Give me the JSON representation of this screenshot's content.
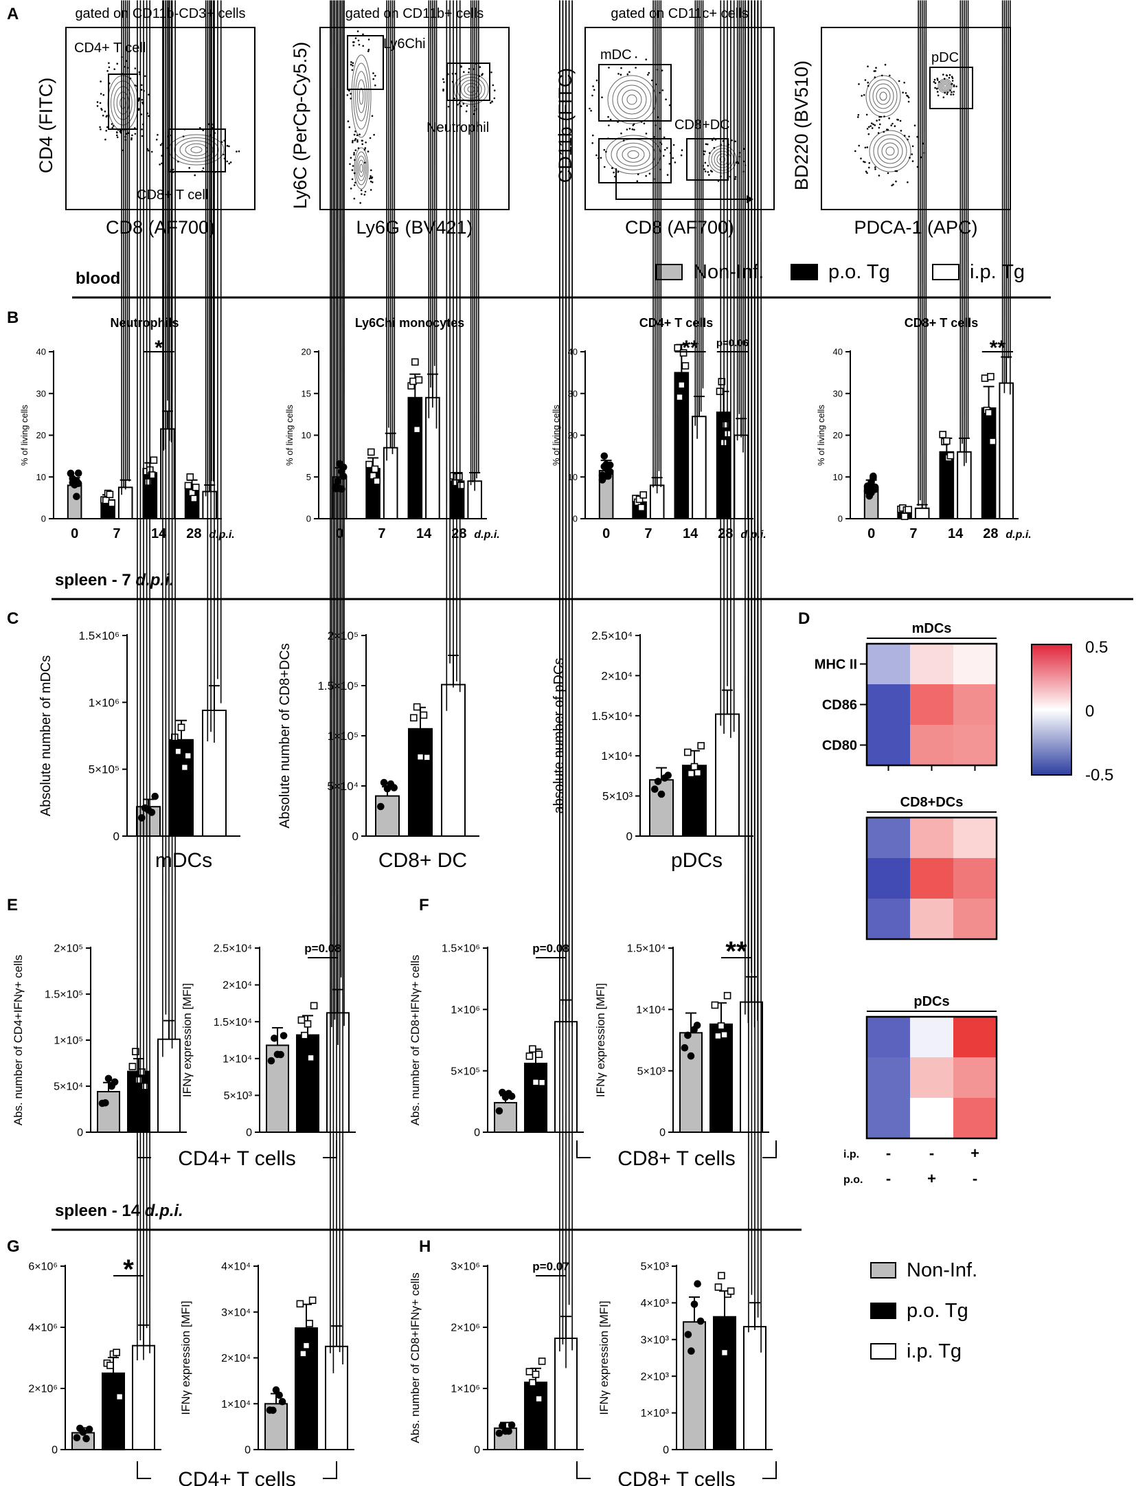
{
  "panel_letters": [
    "A",
    "B",
    "C",
    "D",
    "E",
    "F",
    "G",
    "H"
  ],
  "section_labels": {
    "blood": "blood",
    "spleen7_prefix": "spleen - 7 ",
    "spleen14_prefix": "spleen - 14 ",
    "dpi": "d.p.i."
  },
  "legend": {
    "non_inf": "Non-Inf.",
    "po": "p.o. Tg",
    "ip": "i.p. Tg",
    "colors": {
      "non_inf": "#bdbdbd",
      "po": "#000000",
      "ip": "#ffffff"
    }
  },
  "flow_panels": [
    {
      "title": "gated on CD11b-CD3+ cells",
      "xlabel": "CD8 (AF700)",
      "ylabel": "CD4 (FITC)",
      "gates": [
        "CD4+ T cell",
        "CD8+ T cell"
      ]
    },
    {
      "title": "gated on CD11b+ cells",
      "xlabel": "Ly6G (BV421)",
      "ylabel": "Ly6C (PerCp-Cy5.5)",
      "gates": [
        "Ly6Chi",
        "Neutrophil"
      ]
    },
    {
      "title": "gated on CD11c+ cells",
      "xlabel": "CD8 (AF700)",
      "ylabel": "CD11b (FITC)",
      "gates": [
        "mDC",
        "CD8+DC"
      ]
    },
    {
      "title": "",
      "xlabel": "PDCA-1 (APC)",
      "ylabel": "BD220 (BV510)",
      "gates": [
        "pDC"
      ]
    }
  ],
  "chart_data": [
    {
      "id": "B1",
      "type": "bar",
      "title": "Neutrophils",
      "ylabel": "% of living cells",
      "ylim": [
        0,
        40
      ],
      "yticks": [
        "0",
        "10",
        "20",
        "30",
        "40"
      ],
      "categories": [
        "0",
        "7",
        "14",
        "28"
      ],
      "xunit": "d.p.i.",
      "series": [
        {
          "name": "Non-Inf.",
          "values": [
            8,
            null,
            null,
            null
          ]
        },
        {
          "name": "p.o. Tg",
          "values": [
            null,
            4.5,
            11,
            7.5
          ]
        },
        {
          "name": "i.p. Tg",
          "values": [
            null,
            7.5,
            21.5,
            6.5
          ]
        }
      ],
      "annotations": [
        {
          "text": "*",
          "category": "14"
        }
      ]
    },
    {
      "id": "B2",
      "type": "bar",
      "title": "Ly6Chi monocytes",
      "ylabel": "% of living cells",
      "ylim": [
        0,
        20
      ],
      "yticks": [
        "0",
        "5",
        "10",
        "15",
        "20"
      ],
      "categories": [
        "0",
        "7",
        "14",
        "28"
      ],
      "xunit": "d.p.i.",
      "series": [
        {
          "name": "Non-Inf.",
          "values": [
            5,
            null,
            null,
            null
          ]
        },
        {
          "name": "p.o. Tg",
          "values": [
            null,
            6,
            14.5,
            4.5
          ]
        },
        {
          "name": "i.p. Tg",
          "values": [
            null,
            8.5,
            14.5,
            4.5
          ]
        }
      ],
      "annotations": []
    },
    {
      "id": "B3",
      "type": "bar",
      "title": "CD4+ T cells",
      "ylabel": "% of living cells",
      "ylim": [
        0,
        40
      ],
      "yticks": [
        "0",
        "10",
        "20",
        "30",
        "40"
      ],
      "categories": [
        "0",
        "7",
        "14",
        "28"
      ],
      "xunit": "d.p.i.",
      "series": [
        {
          "name": "Non-Inf.",
          "values": [
            11.5,
            null,
            null,
            null
          ]
        },
        {
          "name": "p.o. Tg",
          "values": [
            null,
            4,
            35,
            25.5
          ]
        },
        {
          "name": "i.p. Tg",
          "values": [
            null,
            8,
            24.5,
            20
          ]
        }
      ],
      "annotations": [
        {
          "text": "**",
          "category": "14"
        },
        {
          "text": "p=0.06",
          "category": "28"
        }
      ]
    },
    {
      "id": "B4",
      "type": "bar",
      "title": "CD8+ T cells",
      "ylabel": "% of living cells",
      "ylim": [
        0,
        40
      ],
      "yticks": [
        "0",
        "10",
        "20",
        "30",
        "40"
      ],
      "categories": [
        "0",
        "7",
        "14",
        "28"
      ],
      "xunit": "d.p.i.",
      "series": [
        {
          "name": "Non-Inf.",
          "values": [
            7.5,
            null,
            null,
            null
          ]
        },
        {
          "name": "p.o. Tg",
          "values": [
            null,
            1.5,
            16,
            26.5
          ]
        },
        {
          "name": "i.p. Tg",
          "values": [
            null,
            2.5,
            16,
            32.5
          ]
        }
      ],
      "annotations": [
        {
          "text": "**",
          "category": "28"
        }
      ]
    },
    {
      "id": "C1",
      "type": "bar",
      "ylabel": "Absolute number of mDCs",
      "ylim": [
        0,
        1500000
      ],
      "yticks": [
        "0",
        "5×10⁵",
        "1×10⁶",
        "1.5×10⁶"
      ],
      "xlabel": "mDCs",
      "values": [
        220000,
        720000,
        940000
      ],
      "annotations": []
    },
    {
      "id": "C2",
      "type": "bar",
      "ylabel": "Absolute number of CD8+DCs",
      "ylim": [
        0,
        200000
      ],
      "yticks": [
        "0",
        "5×10⁴",
        "1×10⁵",
        "1.5×10⁵",
        "2×10⁵"
      ],
      "xlabel": "CD8+ DC",
      "values": [
        40000,
        107000,
        151000
      ],
      "annotations": []
    },
    {
      "id": "C3",
      "type": "bar",
      "ylabel": "absolute number of pDCs",
      "ylim": [
        0,
        25000
      ],
      "yticks": [
        "0",
        "5×10³",
        "1×10⁴",
        "1.5×10⁴",
        "2×10⁴",
        "2.5×10⁴"
      ],
      "xlabel": "pDCs",
      "values": [
        7000,
        8800,
        15200
      ],
      "annotations": []
    },
    {
      "id": "E1",
      "type": "bar",
      "ylabel": "Abs. number of CD4+IFNγ+ cells",
      "ylim": [
        0,
        200000
      ],
      "yticks": [
        "0",
        "5×10⁴",
        "1×10⁵",
        "1.5×10⁵",
        "2×10⁵"
      ],
      "values": [
        44000,
        66000,
        101000
      ],
      "annotations": []
    },
    {
      "id": "E2",
      "type": "bar",
      "ylabel": "IFNγ expression [MFI]",
      "ylim": [
        0,
        25000
      ],
      "yticks": [
        "0",
        "5×10³",
        "1×10⁴",
        "1.5×10⁴",
        "2×10⁴",
        "2.5×10⁴"
      ],
      "values": [
        11800,
        13200,
        16200
      ],
      "annotations": [
        {
          "text": "p=0.08",
          "between": [
            1,
            2
          ]
        }
      ],
      "group_label": "CD4+ T cells"
    },
    {
      "id": "F1",
      "type": "bar",
      "ylabel": "Abs. number of CD8+IFNγ+ cells",
      "ylim": [
        0,
        1500000
      ],
      "yticks": [
        "0",
        "5×10⁵",
        "1×10⁶",
        "1.5×10⁶"
      ],
      "values": [
        240000,
        560000,
        900000
      ],
      "annotations": [
        {
          "text": "p=0.08",
          "between": [
            1,
            2
          ]
        }
      ]
    },
    {
      "id": "F2",
      "type": "bar",
      "ylabel": "IFNγ expression [MFI]",
      "ylim": [
        0,
        15000
      ],
      "yticks": [
        "0",
        "5×10³",
        "1×10⁴",
        "1.5×10⁴"
      ],
      "values": [
        8100,
        8800,
        10600
      ],
      "annotations": [
        {
          "text": "**",
          "between": [
            1,
            2
          ]
        }
      ],
      "group_label": "CD8+ T cells"
    },
    {
      "id": "G1",
      "type": "bar",
      "ylabel": "Abs. number of CD4+IFNγ+ cells",
      "ylim": [
        0,
        6000000
      ],
      "yticks": [
        "0",
        "2×10⁶",
        "4×10⁶",
        "6×10⁶"
      ],
      "values": [
        550000,
        2500000,
        3400000
      ],
      "annotations": [
        {
          "text": "*",
          "between": [
            1,
            2
          ]
        }
      ]
    },
    {
      "id": "G2",
      "type": "bar",
      "ylabel": "IFNγ expression [MFI]",
      "ylim": [
        0,
        40000
      ],
      "yticks": [
        "0",
        "1×10⁴",
        "2×10⁴",
        "3×10⁴",
        "4×10⁴"
      ],
      "values": [
        10000,
        26500,
        22500
      ],
      "annotations": [],
      "group_label": "CD4+ T cells"
    },
    {
      "id": "H1",
      "type": "bar",
      "ylabel": "Abs. number of CD8+IFNγ+ cells",
      "ylim": [
        0,
        3000000
      ],
      "yticks": [
        "0",
        "1×10⁶",
        "2×10⁶",
        "3×10⁶"
      ],
      "values": [
        350000,
        1100000,
        1820000
      ],
      "annotations": [
        {
          "text": "p=0.07",
          "between": [
            1,
            2
          ]
        }
      ]
    },
    {
      "id": "H2",
      "type": "bar",
      "ylabel": "IFNγ expression [MFI]",
      "ylim": [
        0,
        5000
      ],
      "yticks": [
        "0",
        "1×10³",
        "2×10³",
        "3×10³",
        "4×10³",
        "5×10³"
      ],
      "values": [
        3480,
        3620,
        3350
      ],
      "annotations": [],
      "group_label": "CD8+ T cells"
    },
    {
      "id": "D",
      "type": "heatmap",
      "colorbar": {
        "min": -0.5,
        "max": 0.5,
        "labels": [
          "0.5",
          "0",
          "-0.5"
        ]
      },
      "columns": [
        "Non-Inf.",
        "p.o.",
        "i.p."
      ],
      "col_labels": {
        "ip_row": "i.p.",
        "po_row": "p.o.",
        "ip": [
          "-",
          "-",
          "+"
        ],
        "po": [
          "-",
          "+",
          "-"
        ]
      },
      "row_labels": [
        "MHC II",
        "CD86",
        "CD80"
      ],
      "blocks": [
        {
          "title": "mDCs",
          "values": [
            [
              -0.22,
              0.1,
              0.04
            ],
            [
              -0.5,
              0.42,
              0.32
            ],
            [
              -0.5,
              0.32,
              0.3
            ]
          ]
        },
        {
          "title": "CD8+DCs",
          "values": [
            [
              -0.42,
              0.22,
              0.12
            ],
            [
              -0.52,
              0.48,
              0.38
            ],
            [
              -0.45,
              0.18,
              0.32
            ]
          ]
        },
        {
          "title": "pDCs",
          "values": [
            [
              -0.45,
              -0.04,
              0.55
            ],
            [
              -0.42,
              0.18,
              0.3
            ],
            [
              -0.42,
              0.0,
              0.42
            ]
          ]
        }
      ]
    }
  ]
}
